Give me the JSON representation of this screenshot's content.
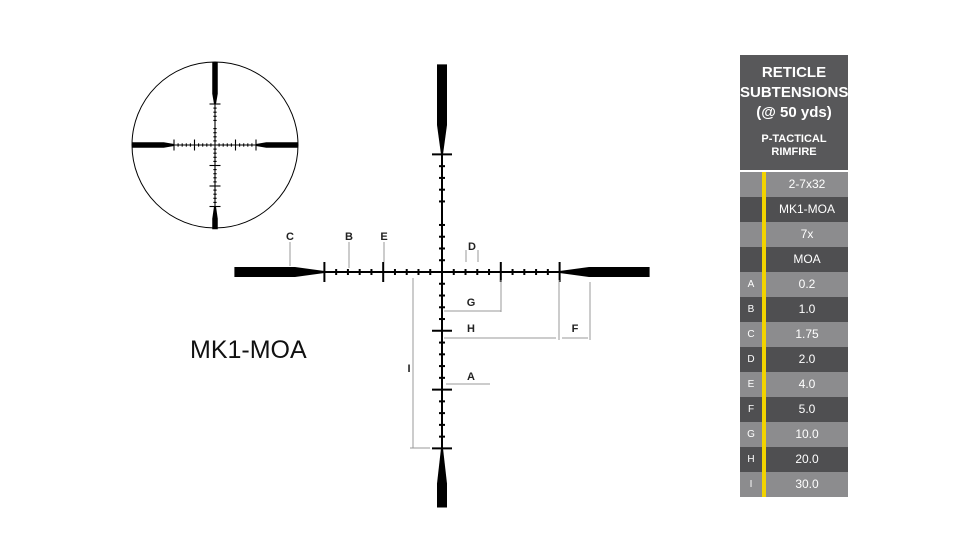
{
  "title": "MK1-MOA",
  "table": {
    "header": "RETICLE SUBTENSIONS (@ 50 yds)",
    "header_lines": [
      "RETICLE",
      "SUBTENSIONS",
      "(@ 50 yds)"
    ],
    "product_lines": [
      "P-TACTICAL",
      "RIMFIRE"
    ],
    "rows": [
      {
        "key": "",
        "value": "2-7x32"
      },
      {
        "key": "",
        "value": "MK1-MOA"
      },
      {
        "key": "",
        "value": "7x"
      },
      {
        "key": "",
        "value": "MOA"
      },
      {
        "key": "A",
        "value": "0.2"
      },
      {
        "key": "B",
        "value": "1.0"
      },
      {
        "key": "C",
        "value": "1.75"
      },
      {
        "key": "D",
        "value": "2.0"
      },
      {
        "key": "E",
        "value": "4.0"
      },
      {
        "key": "F",
        "value": "5.0"
      },
      {
        "key": "G",
        "value": "10.0"
      },
      {
        "key": "H",
        "value": "20.0"
      },
      {
        "key": "I",
        "value": "30.0"
      }
    ]
  },
  "labels": {
    "A": "A",
    "B": "B",
    "C": "C",
    "D": "D",
    "E": "E",
    "F": "F",
    "G": "G",
    "H": "H",
    "I": "I"
  },
  "colors": {
    "accent": "#f2d300",
    "header": "#58585a",
    "row_light": "#8c8c8e",
    "row_dark": "#4f4f51"
  }
}
